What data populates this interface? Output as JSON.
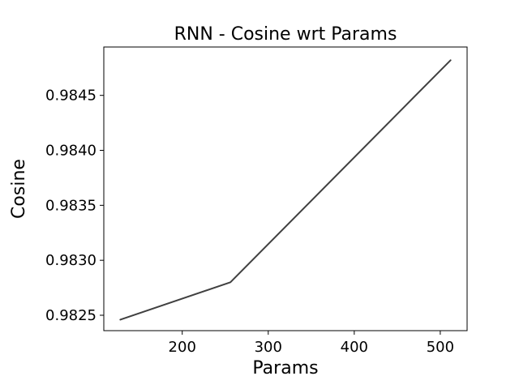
{
  "chart_data": {
    "type": "line",
    "title": "RNN - Cosine wrt Params",
    "xlabel": "Params",
    "ylabel": "Cosine",
    "x": [
      128,
      256,
      512
    ],
    "series": [
      {
        "values": [
          0.98246,
          0.9828,
          0.98482
        ],
        "color": "#404040"
      }
    ],
    "xlim": [
      108.8,
      531.2
    ],
    "ylim": [
      0.98236,
      0.98494
    ],
    "xticks": [
      200,
      300,
      400,
      500
    ],
    "yticks": [
      0.9825,
      0.983,
      0.9835,
      0.984,
      0.9845
    ],
    "xtick_labels": [
      "200",
      "300",
      "400",
      "500"
    ],
    "ytick_labels": [
      "0.9825",
      "0.9830",
      "0.9835",
      "0.9840",
      "0.9845"
    ],
    "grid": false,
    "legend": "none"
  }
}
